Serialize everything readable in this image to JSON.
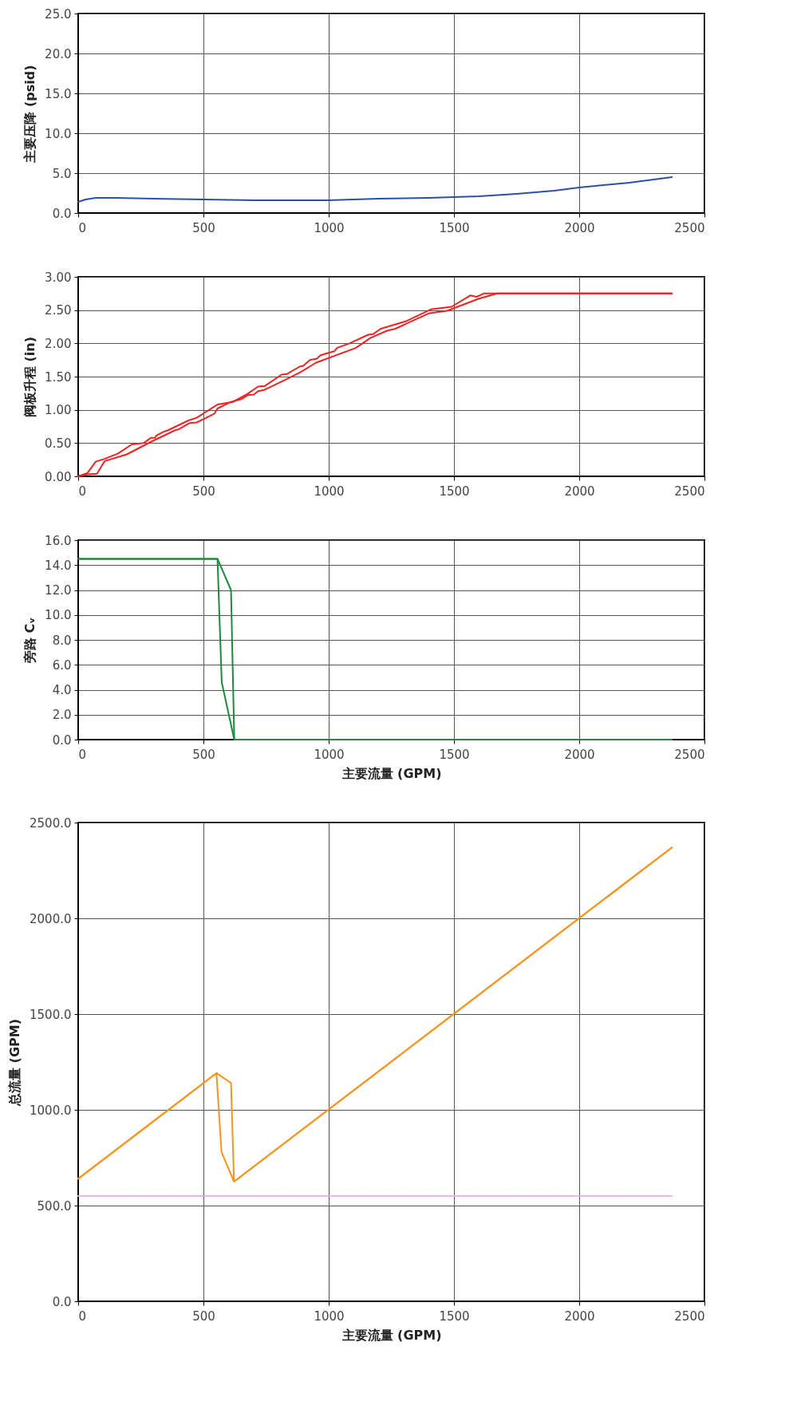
{
  "chart_data": [
    {
      "type": "line",
      "ylabel": "主要压降 (psid)",
      "xlim": [
        0,
        2500
      ],
      "xticks": [
        0,
        500,
        1000,
        1500,
        2000,
        2500
      ],
      "ylim": [
        0,
        25
      ],
      "yticks": [
        {
          "value": 0,
          "label": "0.0"
        },
        {
          "value": 5,
          "label": "5.0"
        },
        {
          "value": 10,
          "label": "10.0"
        },
        {
          "value": 15,
          "label": "15.0"
        },
        {
          "value": 20,
          "label": "20.0"
        },
        {
          "value": 25,
          "label": "25.0"
        }
      ],
      "grid": true,
      "series": [
        {
          "color": "#2e4fa3",
          "x": [
            0,
            30,
            70,
            150,
            300,
            500,
            700,
            850,
            1000,
            1200,
            1400,
            1600,
            1750,
            1900,
            2000,
            2200,
            2370
          ],
          "values": [
            1.4,
            1.7,
            1.9,
            1.9,
            1.8,
            1.7,
            1.6,
            1.6,
            1.6,
            1.8,
            1.9,
            2.1,
            2.4,
            2.8,
            3.2,
            3.8,
            4.5
          ]
        }
      ]
    },
    {
      "type": "line",
      "ylabel": "阀板升程 (in)",
      "xlim": [
        0,
        2500
      ],
      "xticks": [
        0,
        500,
        1000,
        1500,
        2000,
        2500
      ],
      "ylim": [
        0,
        3
      ],
      "yticks": [
        {
          "value": 0,
          "label": "0.00"
        },
        {
          "value": 0.5,
          "label": "0.50"
        },
        {
          "value": 1,
          "label": "1.00"
        },
        {
          "value": 1.5,
          "label": "1.50"
        },
        {
          "value": 2,
          "label": "2.00"
        },
        {
          "value": 2.5,
          "label": "2.50"
        },
        {
          "value": 3,
          "label": "3.00"
        }
      ],
      "grid": true,
      "series": [
        {
          "color": "#ee2222",
          "x": [
            0,
            37,
            70,
            103,
            158,
            214,
            261,
            291,
            307,
            311,
            341,
            357,
            440,
            473,
            556,
            618,
            676,
            718,
            746,
            812,
            834,
            884,
            897,
            925,
            953,
            967,
            1022,
            1033,
            1083,
            1158,
            1178,
            1208,
            1307,
            1407,
            1490,
            1565,
            1590,
            1620,
            1739,
            2370
          ],
          "values": [
            0,
            0.05,
            0.22,
            0.26,
            0.34,
            0.48,
            0.5,
            0.58,
            0.58,
            0.61,
            0.67,
            0.69,
            0.84,
            0.88,
            1.08,
            1.12,
            1.24,
            1.35,
            1.36,
            1.53,
            1.54,
            1.65,
            1.66,
            1.75,
            1.77,
            1.82,
            1.88,
            1.93,
            2.0,
            2.13,
            2.14,
            2.22,
            2.33,
            2.51,
            2.55,
            2.72,
            2.7,
            2.75,
            2.75,
            2.75
          ]
        },
        {
          "color": "#ee2222",
          "x": [
            0,
            37,
            75,
            106,
            194,
            286,
            385,
            402,
            444,
            473,
            543,
            556,
            610,
            651,
            676,
            701,
            718,
            743,
            826,
            889,
            950,
            1108,
            1166,
            1233,
            1266,
            1399,
            1473,
            1598,
            1673,
            2370
          ],
          "values": [
            0,
            0.03,
            0.04,
            0.23,
            0.33,
            0.51,
            0.69,
            0.71,
            0.8,
            0.81,
            0.94,
            1.02,
            1.12,
            1.16,
            1.22,
            1.23,
            1.28,
            1.3,
            1.45,
            1.57,
            1.71,
            1.93,
            2.08,
            2.19,
            2.22,
            2.45,
            2.49,
            2.67,
            2.75,
            2.75
          ]
        }
      ]
    },
    {
      "type": "line",
      "ylabel": "旁路 Cᵥ",
      "xlabel": "主要流量 (GPM)",
      "xlim": [
        0,
        2500
      ],
      "xticks": [
        0,
        500,
        1000,
        1500,
        2000,
        2500
      ],
      "ylim": [
        0,
        16
      ],
      "yticks": [
        {
          "value": 0,
          "label": "0.0"
        },
        {
          "value": 2,
          "label": "2.0"
        },
        {
          "value": 4,
          "label": "4.0"
        },
        {
          "value": 6,
          "label": "6.0"
        },
        {
          "value": 8,
          "label": "8.0"
        },
        {
          "value": 10,
          "label": "10.0"
        },
        {
          "value": 12,
          "label": "12.0"
        },
        {
          "value": 14,
          "label": "14.0"
        },
        {
          "value": 16,
          "label": "16.0"
        }
      ],
      "grid": true,
      "series": [
        {
          "color": "#1a8a3c",
          "x": [
            0,
            150,
            300,
            450,
            556,
            610,
            623,
            1000,
            1500,
            2000,
            2370
          ],
          "values": [
            14.5,
            14.5,
            14.5,
            14.5,
            14.5,
            12.0,
            0,
            0,
            0,
            0,
            0
          ]
        },
        {
          "color": "#1a8a3c",
          "x": [
            0,
            556,
            573,
            623,
            2370
          ],
          "values": [
            14.5,
            14.5,
            4.6,
            0,
            0
          ]
        }
      ]
    },
    {
      "type": "line",
      "ylabel": "总流量 (GPM)",
      "xlabel": "主要流量 (GPM)",
      "xlim": [
        0,
        2500
      ],
      "xticks": [
        0,
        500,
        1000,
        1500,
        2000,
        2500
      ],
      "ylim": [
        0,
        2500
      ],
      "yticks": [
        {
          "value": 0,
          "label": "0.0"
        },
        {
          "value": 500,
          "label": "500.0"
        },
        {
          "value": 1000,
          "label": "1000.0"
        },
        {
          "value": 1500,
          "label": "1500.0"
        },
        {
          "value": 2000,
          "label": "2000.0"
        },
        {
          "value": 2500,
          "label": "2500.0"
        }
      ],
      "grid": true,
      "series": [
        {
          "color": "#f7941d",
          "x": [
            0,
            552,
            610,
            622,
            2370
          ],
          "values": [
            640,
            1192,
            1140,
            625,
            2370
          ]
        },
        {
          "color": "#f7941d",
          "x": [
            0,
            552,
            572,
            622,
            2370
          ],
          "values": [
            640,
            1192,
            780,
            625,
            2370
          ]
        },
        {
          "color": "#e6a8e6",
          "line_style": "dotted",
          "x": [
            0,
            2370
          ],
          "values": [
            550,
            550
          ]
        }
      ]
    }
  ]
}
